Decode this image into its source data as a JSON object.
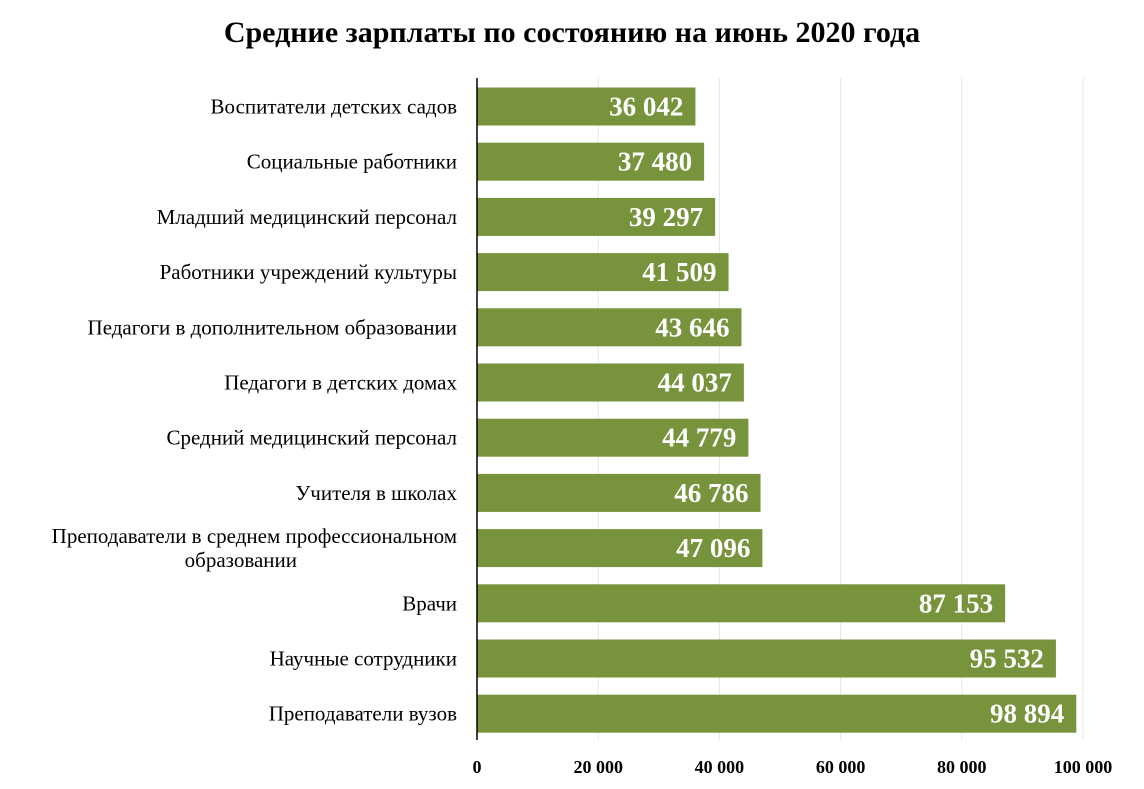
{
  "chart_data": {
    "type": "bar",
    "orientation": "horizontal",
    "title": "Средние зарплаты по состоянию на июнь 2020 года",
    "xlabel": "",
    "ylabel": "",
    "categories": [
      "Воспитатели детских садов",
      "Социальные работники",
      "Младший медицинский персонал",
      "Работники учреждений культуры",
      "Педагоги в дополнительном образовании",
      "Педагоги в детских домах",
      "Средний медицинский персонал",
      "Учителя в школах",
      "Преподаватели в среднем профессиональном образовании",
      "Врачи",
      "Научные сотрудники",
      "Преподаватели вузов"
    ],
    "category_lines": [
      [
        "Воспитатели детских садов"
      ],
      [
        "Социальные работники"
      ],
      [
        "Младший медицинский персонал"
      ],
      [
        "Работники учреждений культуры"
      ],
      [
        "Педагоги в дополнительном образовании"
      ],
      [
        "Педагоги в детских домах"
      ],
      [
        "Средний медицинский персонал"
      ],
      [
        "Учителя в школах"
      ],
      [
        "Преподаватели в среднем профессиональном",
        "образовании"
      ],
      [
        "Врачи"
      ],
      [
        "Научные сотрудники"
      ],
      [
        "Преподаватели вузов"
      ]
    ],
    "values": [
      36042,
      37480,
      39297,
      41509,
      43646,
      44037,
      44779,
      46786,
      47096,
      87153,
      95532,
      98894
    ],
    "value_labels": [
      "36 042",
      "37 480",
      "39 297",
      "41 509",
      "43 646",
      "44 037",
      "44 779",
      "46 786",
      "47 096",
      "87 153",
      "95 532",
      "98 894"
    ],
    "xlim": [
      0,
      100000
    ],
    "x_ticks": [
      0,
      20000,
      40000,
      60000,
      80000,
      100000
    ],
    "x_tick_labels": [
      "0",
      "20 000",
      "40 000",
      "60 000",
      "80 000",
      "100 000"
    ],
    "grid": "vertical",
    "legend": "none",
    "colors": {
      "bar": "#77933c",
      "value_label": "#ffffff",
      "grid": "#e6e6e6",
      "axis": "#000000",
      "text": "#000000"
    }
  }
}
